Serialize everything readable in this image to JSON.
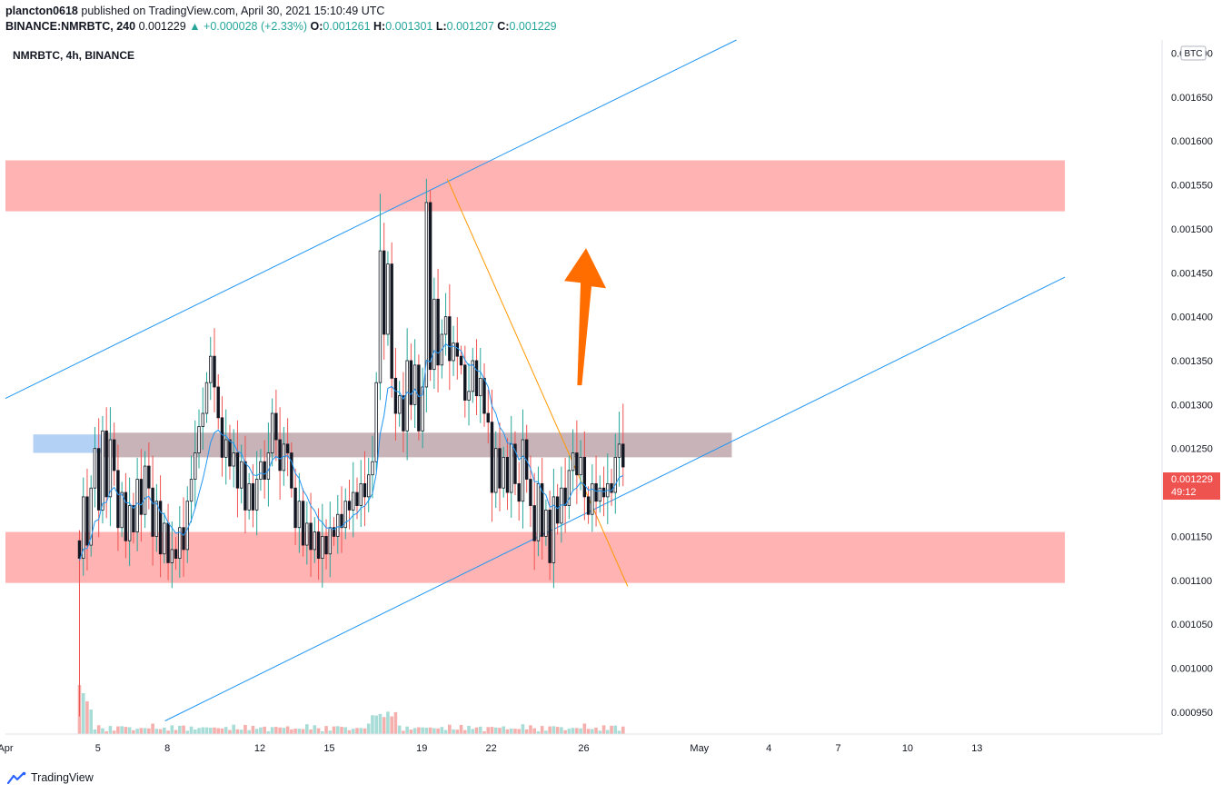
{
  "header": {
    "publisher": "plancton0618",
    "published_text": "published on TradingView.com, April 30, 2021 15:10:49 UTC",
    "symbol": "BINANCE:NMRBTC, 240",
    "last": "0.001229",
    "change": "+0.000028 (+2.33%)",
    "o_label": "O:",
    "o_value": "0.001261",
    "h_label": "H:",
    "h_value": "0.001301",
    "l_label": "L:",
    "l_value": "0.001207",
    "c_label": "C:",
    "c_value": "0.001229"
  },
  "chart_title": "NMRBTC, 4h, BINANCE",
  "currency_badge": "BTC",
  "price_tag": {
    "price": "0.001229",
    "countdown": "49:12"
  },
  "footer": {
    "brand": "TradingView"
  },
  "colors": {
    "up": "#26a69a",
    "down": "#ef5350",
    "candle_body": "#131722",
    "ma": "#2196f3",
    "trend": "#2196f3",
    "downtrend": "#ff9800",
    "resistance_zone": "#ffb3b3",
    "support_zone": "#ffb3b3",
    "pivot_zone": "#b3d1f5",
    "arrow": "#ff6d00",
    "price_tag_bg": "#ef5350"
  },
  "chart_data": {
    "type": "candlestick",
    "symbol": "NMRBTC",
    "timeframe": "4h",
    "y_range": [
      0.000925,
      0.001715
    ],
    "x_range_days": [
      1,
      51
    ],
    "y_ticks": [
      "0.001700",
      "0.001650",
      "0.001600",
      "0.001550",
      "0.001500",
      "0.001450",
      "0.001400",
      "0.001350",
      "0.001300",
      "0.001250",
      "0.001200",
      "0.001150",
      "0.001100",
      "0.001050",
      "0.001000",
      "0.000950"
    ],
    "x_ticks": [
      {
        "label": "Apr",
        "day": 1
      },
      {
        "label": "5",
        "day": 5
      },
      {
        "label": "8",
        "day": 8
      },
      {
        "label": "12",
        "day": 12
      },
      {
        "label": "15",
        "day": 15
      },
      {
        "label": "19",
        "day": 19
      },
      {
        "label": "22",
        "day": 22
      },
      {
        "label": "26",
        "day": 26
      },
      {
        "label": "May",
        "day": 31
      },
      {
        "label": "4",
        "day": 34
      },
      {
        "label": "7",
        "day": 37
      },
      {
        "label": "10",
        "day": 40
      },
      {
        "label": "13",
        "day": 43
      }
    ],
    "zones": [
      {
        "name": "resistance",
        "from_day": 1,
        "to_day": 46.8,
        "low": 0.00152,
        "high": 0.001578,
        "color": "#ffb3b3"
      },
      {
        "name": "support",
        "from_day": 1,
        "to_day": 46.8,
        "low": 0.001097,
        "high": 0.001155,
        "color": "#ffb3b3"
      },
      {
        "name": "pivot",
        "from_day": 2.2,
        "to_day": 32.4,
        "low": 0.001245,
        "high": 0.001266,
        "color": "#b3d1f5"
      },
      {
        "name": "pivot-overlap",
        "from_day": 5.2,
        "to_day": 32.4,
        "low": 0.00124,
        "high": 0.001268,
        "color": "#c8b3b8"
      }
    ],
    "lines": [
      {
        "name": "channel-upper",
        "day1": 1,
        "price1": 0.001307,
        "day2": 32.6,
        "price2": 0.001715,
        "color": "#2196f3"
      },
      {
        "name": "channel-lower",
        "day1": 7.9,
        "price1": 0.00094,
        "day2": 46.8,
        "price2": 0.001445,
        "color": "#2196f3"
      },
      {
        "name": "downtrend",
        "day1": 20.1,
        "price1": 0.001557,
        "day2": 27.9,
        "price2": 0.001093,
        "color": "#ff9800"
      }
    ],
    "arrow": {
      "tail_day": 25.8,
      "tail_price": 0.001322,
      "head_day": 26.1,
      "head_price": 0.001478
    },
    "volume_scale_max": 1.0,
    "candles": []
  }
}
